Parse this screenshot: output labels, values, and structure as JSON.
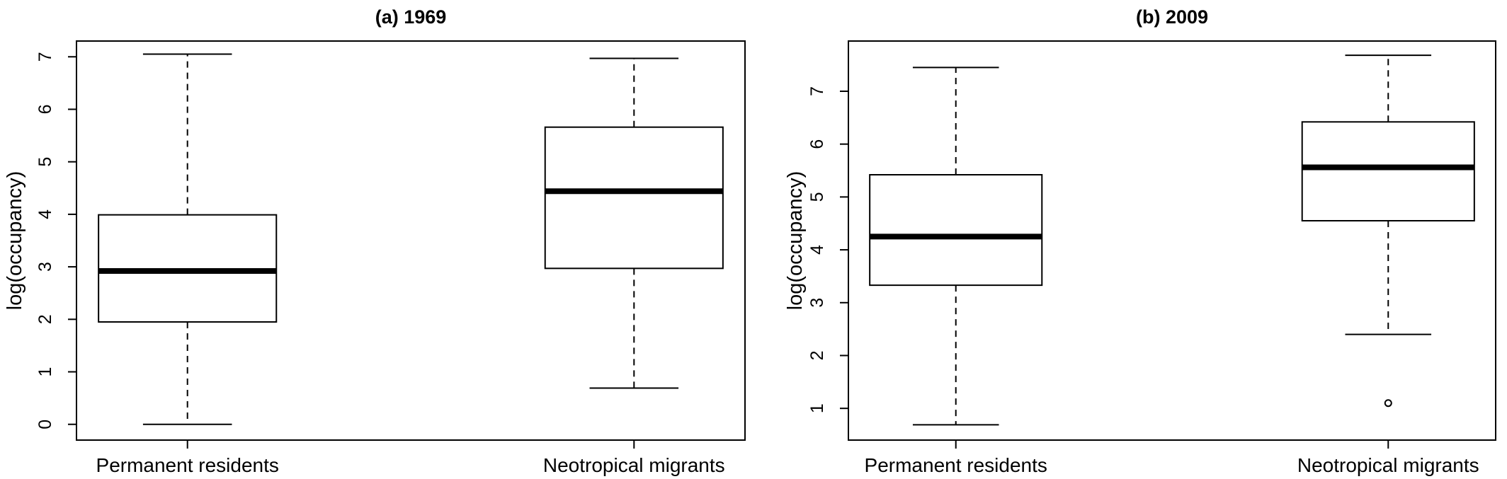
{
  "chart_data": [
    {
      "type": "boxplot",
      "title": "(a) 1969",
      "ylabel": "log(occupancy)",
      "xlabel": "",
      "ylim": [
        -0.3,
        7.3
      ],
      "yticks": [
        0,
        1,
        2,
        3,
        4,
        5,
        6,
        7
      ],
      "categories": [
        "Permanent residents",
        "Neotropical migrants"
      ],
      "boxes": [
        {
          "category": "Permanent residents",
          "whisker_low": 0.0,
          "q1": 1.95,
          "median": 2.92,
          "q3": 3.99,
          "whisker_high": 7.05,
          "outliers": []
        },
        {
          "category": "Neotropical migrants",
          "whisker_low": 0.69,
          "q1": 2.97,
          "median": 4.44,
          "q3": 5.66,
          "whisker_high": 6.97,
          "outliers": []
        }
      ]
    },
    {
      "type": "boxplot",
      "title": "(b) 2009",
      "ylabel": "log(occupancy)",
      "xlabel": "",
      "ylim": [
        0.4,
        7.95
      ],
      "yticks": [
        1,
        2,
        3,
        4,
        5,
        6,
        7
      ],
      "categories": [
        "Permanent residents",
        "Neotropical migrants"
      ],
      "boxes": [
        {
          "category": "Permanent residents",
          "whisker_low": 0.69,
          "q1": 3.33,
          "median": 4.25,
          "q3": 5.42,
          "whisker_high": 7.45,
          "outliers": []
        },
        {
          "category": "Neotropical migrants",
          "whisker_low": 2.4,
          "q1": 4.55,
          "median": 5.56,
          "q3": 6.42,
          "whisker_high": 7.68,
          "outliers": [
            1.1
          ]
        }
      ]
    }
  ]
}
